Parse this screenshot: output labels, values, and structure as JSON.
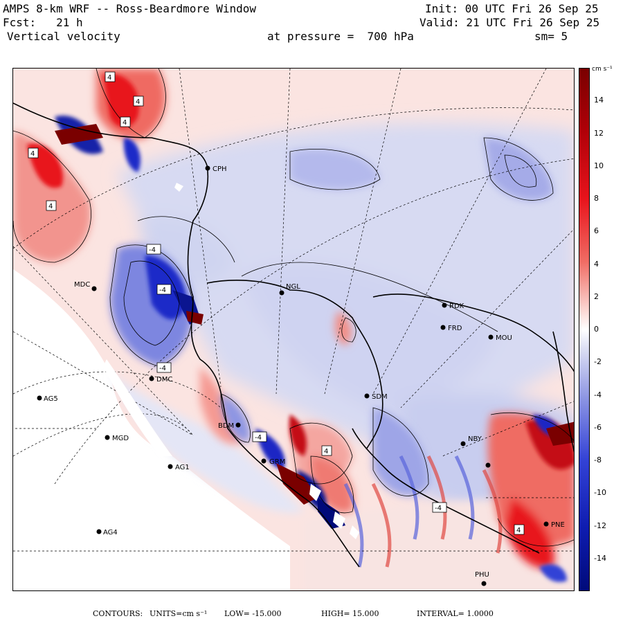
{
  "header": {
    "title": "AMPS 8-km WRF -- Ross-Beardmore Window",
    "init": "Init: 00 UTC Fri 26 Sep 25",
    "fcst": "Fcst:   21 h",
    "valid": "Valid: 21 UTC Fri 26 Sep 25",
    "variable": "Vertical velocity",
    "pressure": "at pressure =  700 hPa",
    "smoothing": "sm= 5"
  },
  "colorbar": {
    "units": "cm s⁻¹",
    "labels": [
      "14",
      "12",
      "10",
      "8",
      "6",
      "4",
      "2",
      "0",
      "-2",
      "-4",
      "-6",
      "-8",
      "-10",
      "-12",
      "-14"
    ],
    "min": -16,
    "max": 16,
    "colors": {
      "max_red": "#7a0000",
      "red": "#e8141c",
      "light_red": "#f7b9b4",
      "white": "#ffffff",
      "light_blue": "#c7cdf0",
      "blue": "#3342d6",
      "max_blue": "#000a7a"
    }
  },
  "contour_labels": [
    "4",
    "4",
    "4",
    "4",
    "4",
    "-4",
    "-4",
    "-4",
    "-4",
    "-4",
    "4",
    "4"
  ],
  "stations": [
    {
      "id": "CPH"
    },
    {
      "id": "MDC"
    },
    {
      "id": "NGL"
    },
    {
      "id": "RDK"
    },
    {
      "id": "FRD"
    },
    {
      "id": "MOU"
    },
    {
      "id": "SDM"
    },
    {
      "id": "AG5"
    },
    {
      "id": "MGD"
    },
    {
      "id": "AG1"
    },
    {
      "id": "AG4"
    },
    {
      "id": "BDM"
    },
    {
      "id": "GRM"
    },
    {
      "id": "NBY"
    },
    {
      "id": "PNE"
    },
    {
      "id": "PHU"
    },
    {
      "id": "DMC"
    }
  ],
  "footer": {
    "contours": "CONTOURS:",
    "units": "UNITS=cm s⁻¹",
    "low": "LOW= -15.000",
    "high": "HIGH= 15.000",
    "interval": "INTERVAL= 1.0000"
  }
}
